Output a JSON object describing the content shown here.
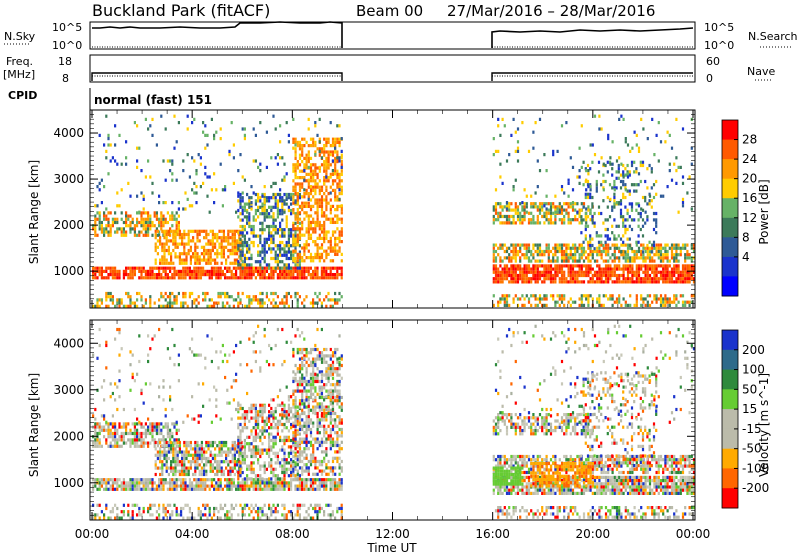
{
  "header": {
    "title": "Buckland Park (fitACF)",
    "beam": "Beam 00",
    "date_range": "27/Mar/2016 – 28/Mar/2016"
  },
  "summary_panels": {
    "nsky_label": "N.Sky",
    "nsky_ticks": [
      "10^5",
      "10^0"
    ],
    "nsearch_label": "N.Search",
    "nsearch_ticks": [
      "10^5",
      "10^0"
    ],
    "freq_label": "Freq.",
    "freq_unit": "[MHz]",
    "freq_ticks": [
      "18",
      "8"
    ],
    "nave_label": "Nave",
    "nave_ticks": [
      "60",
      "0"
    ],
    "cpid_label": "CPID",
    "cpid_text": "normal (fast) 151"
  },
  "chart_data": [
    {
      "type": "heatmap",
      "name": "power",
      "xlabel": "",
      "ylabel": "Slant Range [km]",
      "colorbar_label": "Power [dB]",
      "colorbar_ticks": [
        "28",
        "24",
        "20",
        "16",
        "12",
        "8",
        "4"
      ],
      "colorbar_colors": [
        "#ff0000",
        "#ff5a00",
        "#ff9900",
        "#ffcc00",
        "#66b266",
        "#3c7a5a",
        "#2e5a96",
        "#1a33cc",
        "#0000ff"
      ],
      "x_ticks": [
        "00:00",
        "04:00",
        "08:00",
        "12:00",
        "16:00",
        "20:00",
        "00:00"
      ],
      "y_ticks": [
        1000,
        2000,
        3000,
        4000
      ],
      "ylim": [
        200,
        4500
      ],
      "xlim_hours": [
        0,
        24
      ],
      "data_gap_hours": [
        10,
        16
      ]
    },
    {
      "type": "heatmap",
      "name": "velocity",
      "xlabel": "Time UT",
      "ylabel": "Slant Range [km]",
      "colorbar_label": "Velocity [m s^-1]",
      "colorbar_ticks": [
        "200",
        "100",
        "50",
        "15",
        "-15",
        "-50",
        "-100",
        "-200"
      ],
      "colorbar_colors": [
        "#1a33cc",
        "#2e6a8a",
        "#2e8a3c",
        "#66cc33",
        "#bbbbaa",
        "#bbbbaa",
        "#ffaa00",
        "#ff6600",
        "#ff0000"
      ],
      "x_ticks": [
        "00:00",
        "04:00",
        "08:00",
        "12:00",
        "16:00",
        "20:00",
        "00:00"
      ],
      "y_ticks": [
        1000,
        2000,
        3000,
        4000
      ],
      "ylim": [
        200,
        4500
      ],
      "xlim_hours": [
        0,
        24
      ],
      "data_gap_hours": [
        10,
        16
      ]
    }
  ]
}
